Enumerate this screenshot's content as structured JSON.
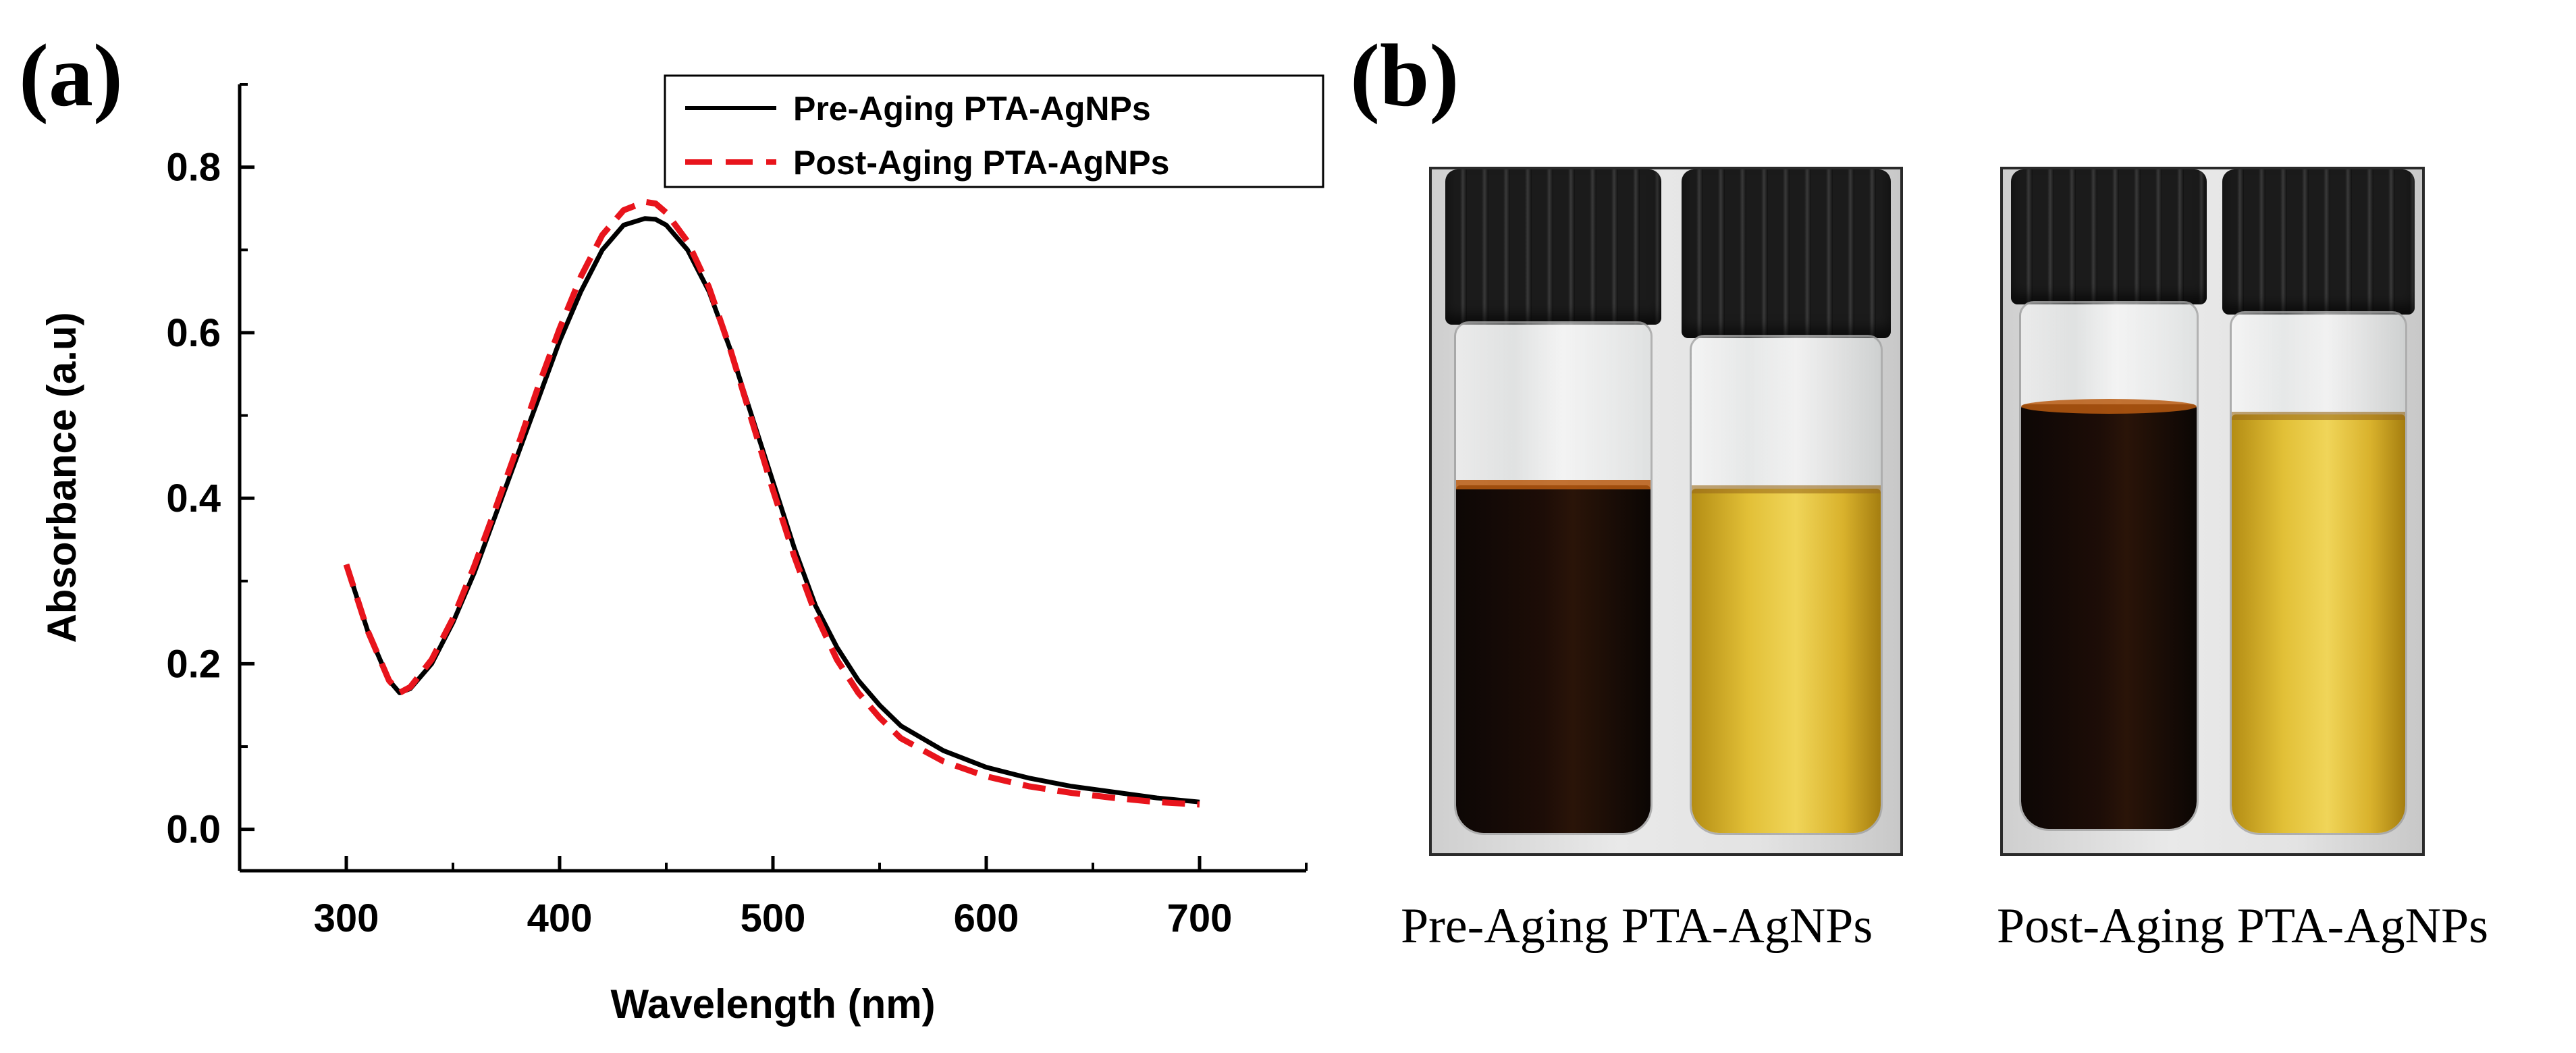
{
  "panels": {
    "a": {
      "label": "(a)"
    },
    "b": {
      "label": "(b)",
      "images": [
        {
          "caption": "Pre-Aging PTA-AgNPs"
        },
        {
          "caption": "Post-Aging PTA-AgNPs"
        }
      ]
    }
  },
  "colors": {
    "pre": "#000000",
    "post": "#e8141c"
  },
  "chart_data": {
    "type": "line",
    "title": "",
    "xlabel": "Wavelength (nm)",
    "ylabel": "Absorbance (a.u)",
    "xlim": [
      250,
      750
    ],
    "ylim": [
      -0.05,
      0.9
    ],
    "xticks": [
      300,
      400,
      500,
      600,
      700
    ],
    "xtick_labels": [
      "300",
      "400",
      "500",
      "600",
      "700"
    ],
    "yticks": [
      0.0,
      0.2,
      0.4,
      0.6,
      0.8
    ],
    "ytick_labels": [
      "0.0",
      "0.2",
      "0.4",
      "0.6",
      "0.8"
    ],
    "legend": "top-right",
    "grid": false,
    "series": [
      {
        "name": "Pre-Aging PTA-AgNPs",
        "style": "solid",
        "x": [
          300,
          310,
          320,
          325,
          330,
          340,
          350,
          360,
          370,
          380,
          390,
          400,
          410,
          420,
          430,
          440,
          445,
          450,
          460,
          470,
          480,
          490,
          500,
          510,
          520,
          530,
          540,
          550,
          560,
          580,
          600,
          620,
          640,
          660,
          680,
          700
        ],
        "y": [
          0.32,
          0.24,
          0.18,
          0.165,
          0.17,
          0.2,
          0.25,
          0.31,
          0.38,
          0.45,
          0.52,
          0.59,
          0.65,
          0.7,
          0.73,
          0.738,
          0.737,
          0.73,
          0.7,
          0.65,
          0.58,
          0.5,
          0.42,
          0.34,
          0.27,
          0.22,
          0.18,
          0.15,
          0.125,
          0.095,
          0.075,
          0.062,
          0.052,
          0.045,
          0.038,
          0.033
        ]
      },
      {
        "name": "Post-Aging PTA-AgNPs",
        "style": "dashed",
        "x": [
          300,
          310,
          320,
          325,
          330,
          340,
          350,
          360,
          370,
          380,
          390,
          400,
          410,
          420,
          430,
          440,
          445,
          450,
          460,
          470,
          480,
          490,
          500,
          510,
          520,
          530,
          540,
          550,
          560,
          580,
          600,
          620,
          640,
          660,
          680,
          700
        ],
        "y": [
          0.32,
          0.24,
          0.18,
          0.165,
          0.172,
          0.205,
          0.255,
          0.318,
          0.388,
          0.46,
          0.535,
          0.605,
          0.668,
          0.718,
          0.748,
          0.758,
          0.756,
          0.745,
          0.71,
          0.655,
          0.58,
          0.495,
          0.41,
          0.33,
          0.26,
          0.205,
          0.165,
          0.135,
          0.11,
          0.082,
          0.064,
          0.052,
          0.044,
          0.038,
          0.033,
          0.03
        ]
      }
    ]
  }
}
